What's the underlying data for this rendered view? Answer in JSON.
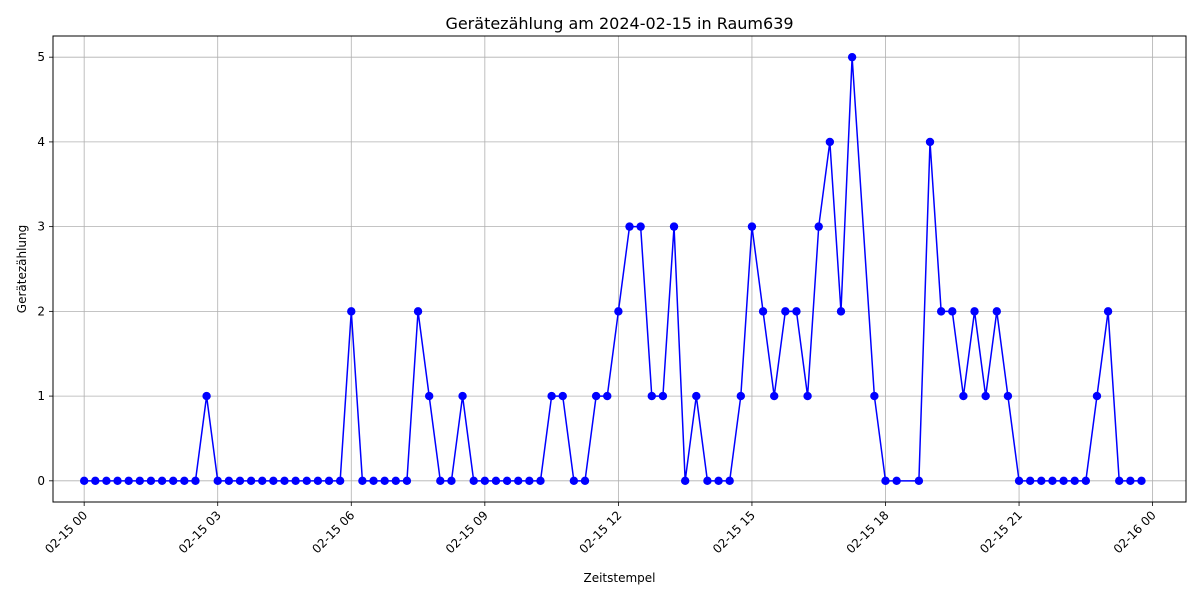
{
  "chart_data": {
    "type": "line",
    "title": "Gerätezählung am 2024-02-15 in Raum639",
    "xlabel": "Zeitstempel",
    "ylabel": "Gerätezählung",
    "x_start": "2024-02-15 00:00",
    "x_step_minutes": 15,
    "x_ticks": [
      "02-15 00",
      "02-15 03",
      "02-15 06",
      "02-15 09",
      "02-15 12",
      "02-15 15",
      "02-15 18",
      "02-15 21",
      "02-16 00"
    ],
    "y_ticks": [
      0,
      1,
      2,
      3,
      4,
      5
    ],
    "ylim": [
      -0.25,
      5.25
    ],
    "grid": true,
    "series": [
      {
        "color": "#0000ff",
        "marker": "circle",
        "values": [
          0,
          0,
          0,
          0,
          0,
          0,
          0,
          0,
          0,
          0,
          0,
          1,
          0,
          0,
          0,
          0,
          0,
          0,
          0,
          0,
          0,
          0,
          0,
          0,
          2,
          0,
          0,
          0,
          0,
          0,
          2,
          1,
          0,
          0,
          1,
          0,
          0,
          0,
          0,
          0,
          0,
          0,
          1,
          1,
          0,
          0,
          1,
          1,
          2,
          3,
          3,
          1,
          1,
          3,
          0,
          1,
          0,
          0,
          0,
          1,
          3,
          2,
          1,
          2,
          2,
          1,
          3,
          4,
          2,
          5,
          null,
          1,
          0,
          0,
          null,
          0,
          4,
          2,
          2,
          1,
          2,
          1,
          2,
          1,
          0,
          0,
          0,
          0,
          0,
          0,
          0,
          1,
          2,
          0,
          0,
          0
        ]
      }
    ]
  }
}
